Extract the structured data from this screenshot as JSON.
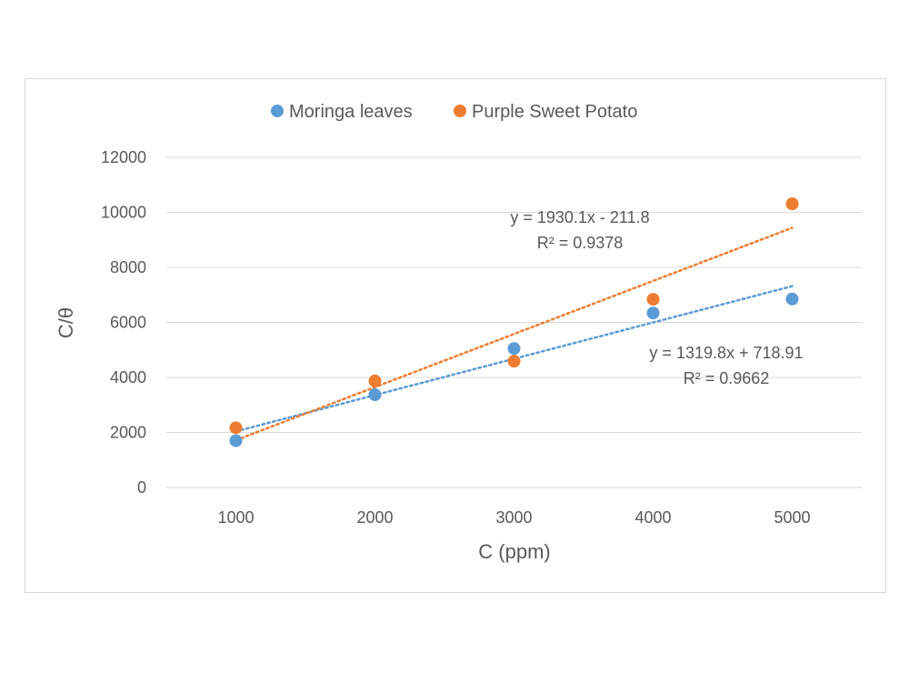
{
  "chart_data": {
    "type": "scatter",
    "xlabel": "C (ppm)",
    "ylabel": "C/θ",
    "x_ticks": [
      "1000",
      "2000",
      "3000",
      "4000",
      "5000"
    ],
    "y_ticks": [
      "0",
      "2000",
      "4000",
      "6000",
      "8000",
      "10000",
      "12000"
    ],
    "xlim": [
      500,
      5500
    ],
    "ylim": [
      0,
      12000
    ],
    "grid": true,
    "legend_position": "top-center",
    "series": [
      {
        "name": "Moringa leaves",
        "color": "#5b9bd5",
        "x": [
          1000,
          2000,
          3000,
          4000,
          5000
        ],
        "y": [
          1700,
          3370,
          5050,
          6340,
          6850
        ],
        "trendline": {
          "slope": 1319.8,
          "intercept": 718.91,
          "equation": "y = 1319.8x + 718.91",
          "r2": "R² = 0.9662"
        }
      },
      {
        "name": "Purple Sweet Potato",
        "color": "#ed7d31",
        "x": [
          1000,
          2000,
          3000,
          4000,
          5000
        ],
        "y": [
          2170,
          3870,
          4590,
          6840,
          10310
        ],
        "trendline": {
          "slope": 1930.1,
          "intercept": -211.8,
          "equation": "y = 1930.1x - 211.8",
          "r2": "R² = 0.9378"
        }
      }
    ]
  }
}
